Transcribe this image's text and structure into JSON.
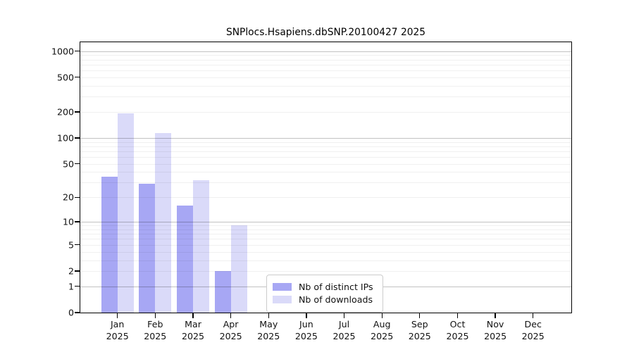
{
  "chart_data": {
    "type": "bar",
    "title": "SNPlocs.Hsapiens.dbSNP.20100427 2025",
    "y_scale": "log1p",
    "months": [
      "Jan",
      "Feb",
      "Mar",
      "Apr",
      "May",
      "Jun",
      "Jul",
      "Aug",
      "Sep",
      "Oct",
      "Nov",
      "Dec"
    ],
    "year": "2025",
    "series": [
      {
        "name": "Nb of distinct IPs",
        "color": "#a7a7f4",
        "values": [
          35,
          29,
          16,
          2,
          0,
          0,
          0,
          0,
          0,
          0,
          0,
          0
        ]
      },
      {
        "name": "Nb of downloads",
        "color": "#dadaf9",
        "values": [
          192,
          115,
          32,
          9,
          0,
          0,
          0,
          0,
          0,
          0,
          0,
          0
        ]
      }
    ],
    "y_ticks": [
      0,
      1,
      2,
      5,
      10,
      20,
      50,
      100,
      200,
      500,
      1000
    ],
    "ylim": [
      0,
      1265
    ],
    "grid": "on",
    "legend_position": "lower center-left inside plot"
  },
  "colors": {
    "background": "#ffffff",
    "spine": "#000000",
    "grid_major": "#c4c4c4",
    "grid_minor": "#efefef",
    "text": "#111111",
    "legend_border": "#cccccc",
    "bar_distinct_ips": "#a7a7f4",
    "bar_downloads": "#dadaf9"
  }
}
